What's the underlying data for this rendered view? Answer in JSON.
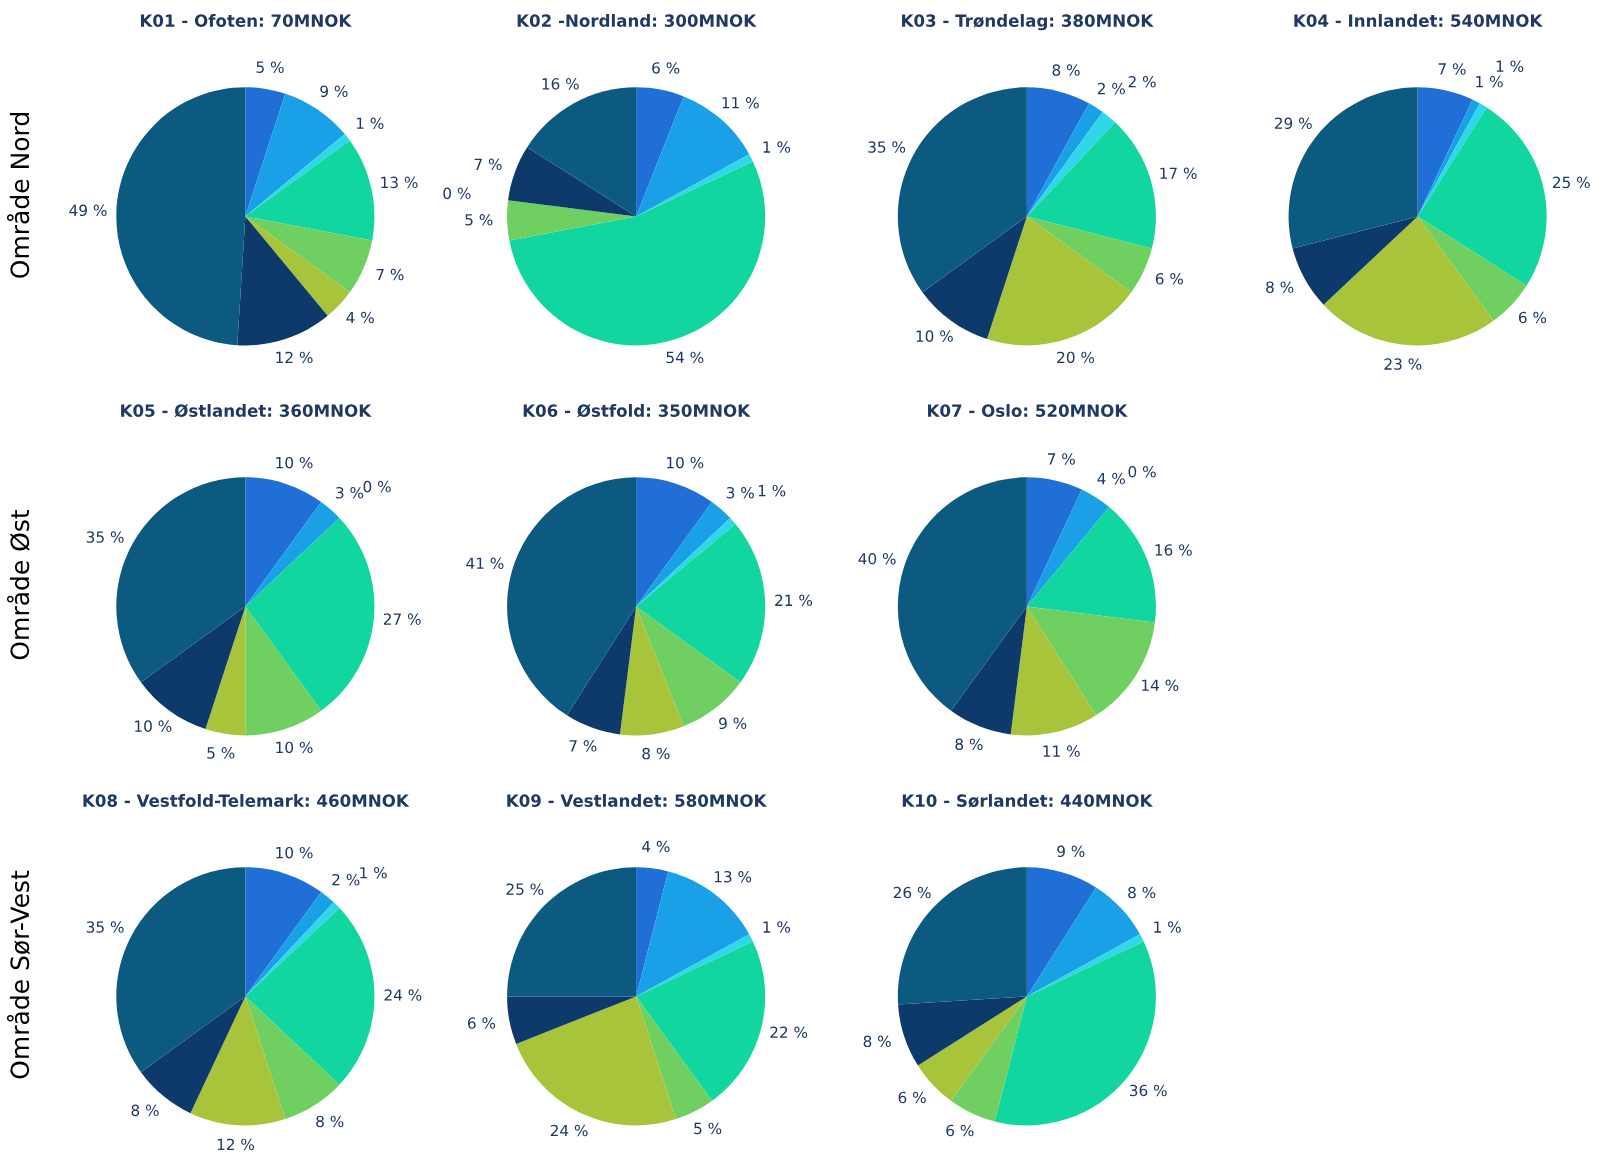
{
  "chart_data": [
    {
      "type": "pie",
      "title": "K01 - Ofoten: 70MNOK",
      "annotations": [
        "Område Nord"
      ],
      "categories": [
        null,
        null,
        null,
        null,
        null,
        null,
        null,
        null
      ],
      "values": [
        5,
        9,
        1,
        13,
        7,
        4,
        12,
        49
      ],
      "value_labels": [
        "5 %",
        "9 %",
        "1 %",
        "13 %",
        "7 %",
        "4 %",
        "12 %",
        "49 %"
      ],
      "colors": [
        "#1f6fd6",
        "#1aa0e6",
        "#2fd8e8",
        "#12d6a0",
        "#6fcf60",
        "#a8c43a",
        "#0d3a6b",
        "#0d5a80"
      ]
    },
    {
      "type": "pie",
      "title": "K02 -Nordland: 300MNOK",
      "categories": [
        null,
        null,
        null,
        null,
        null,
        null,
        null,
        null
      ],
      "values": [
        6,
        11,
        1,
        54,
        5,
        0,
        7,
        16
      ],
      "value_labels": [
        "6 %",
        "11 %",
        "1 %",
        "54 %",
        "5 %",
        "0 %",
        "7 %",
        "16 %"
      ],
      "colors": [
        "#1f6fd6",
        "#1aa0e6",
        "#2fd8e8",
        "#12d6a0",
        "#6fcf60",
        "#a8c43a",
        "#0d3a6b",
        "#0d5a80"
      ]
    },
    {
      "type": "pie",
      "title": "K03 - Trøndelag: 380MNOK",
      "categories": [
        null,
        null,
        null,
        null,
        null,
        null,
        null,
        null
      ],
      "values": [
        8,
        2,
        2,
        17,
        6,
        20,
        10,
        35
      ],
      "value_labels": [
        "8 %",
        "2 %",
        "2 %",
        "17 %",
        "6 %",
        "20 %",
        "10 %",
        "35 %"
      ],
      "colors": [
        "#1f6fd6",
        "#1aa0e6",
        "#2fd8e8",
        "#12d6a0",
        "#6fcf60",
        "#a8c43a",
        "#0d3a6b",
        "#0d5a80"
      ]
    },
    {
      "type": "pie",
      "title": "K04 - Innlandet: 540MNOK",
      "categories": [
        null,
        null,
        null,
        null,
        null,
        null,
        null,
        null
      ],
      "values": [
        7,
        1,
        1,
        25,
        6,
        23,
        8,
        29
      ],
      "value_labels": [
        "7 %",
        "1 %",
        "1 %",
        "25 %",
        "6 %",
        "23 %",
        "8 %",
        "29 %"
      ],
      "colors": [
        "#1f6fd6",
        "#1aa0e6",
        "#2fd8e8",
        "#12d6a0",
        "#6fcf60",
        "#a8c43a",
        "#0d3a6b",
        "#0d5a80"
      ]
    },
    {
      "type": "pie",
      "title": "K05 - Østlandet: 360MNOK",
      "annotations": [
        "Område Øst"
      ],
      "categories": [
        null,
        null,
        null,
        null,
        null,
        null,
        null,
        null
      ],
      "values": [
        10,
        3,
        0,
        27,
        10,
        5,
        10,
        35
      ],
      "value_labels": [
        "10 %",
        "3 %",
        "0 %",
        "27 %",
        "10 %",
        "5 %",
        "10 %",
        "35 %"
      ],
      "colors": [
        "#1f6fd6",
        "#1aa0e6",
        "#2fd8e8",
        "#12d6a0",
        "#6fcf60",
        "#a8c43a",
        "#0d3a6b",
        "#0d5a80"
      ]
    },
    {
      "type": "pie",
      "title": "K06 - Østfold: 350MNOK",
      "categories": [
        null,
        null,
        null,
        null,
        null,
        null,
        null,
        null
      ],
      "values": [
        10,
        3,
        1,
        21,
        9,
        8,
        7,
        41
      ],
      "value_labels": [
        "10 %",
        "3 %",
        "1 %",
        "21 %",
        "9 %",
        "8 %",
        "7 %",
        "41 %"
      ],
      "colors": [
        "#1f6fd6",
        "#1aa0e6",
        "#2fd8e8",
        "#12d6a0",
        "#6fcf60",
        "#a8c43a",
        "#0d3a6b",
        "#0d5a80"
      ]
    },
    {
      "type": "pie",
      "title": "K07 - Oslo: 520MNOK",
      "categories": [
        null,
        null,
        null,
        null,
        null,
        null,
        null,
        null
      ],
      "values": [
        7,
        4,
        0,
        16,
        14,
        11,
        8,
        40
      ],
      "value_labels": [
        "7 %",
        "4 %",
        "0 %",
        "16 %",
        "14 %",
        "11 %",
        "8 %",
        "40 %"
      ],
      "colors": [
        "#1f6fd6",
        "#1aa0e6",
        "#2fd8e8",
        "#12d6a0",
        "#6fcf60",
        "#a8c43a",
        "#0d3a6b",
        "#0d5a80"
      ]
    },
    {
      "type": "pie",
      "title": "K08 - Vestfold-Telemark: 460MNOK",
      "annotations": [
        "Område Sør-Vest"
      ],
      "categories": [
        null,
        null,
        null,
        null,
        null,
        null,
        null,
        null
      ],
      "values": [
        10,
        2,
        1,
        24,
        8,
        12,
        8,
        35
      ],
      "value_labels": [
        "10 %",
        "2 %",
        "1 %",
        "24 %",
        "8 %",
        "12 %",
        "8 %",
        "35 %"
      ],
      "colors": [
        "#1f6fd6",
        "#1aa0e6",
        "#2fd8e8",
        "#12d6a0",
        "#6fcf60",
        "#a8c43a",
        "#0d3a6b",
        "#0d5a80"
      ]
    },
    {
      "type": "pie",
      "title": "K09 - Vestlandet: 580MNOK",
      "categories": [
        null,
        null,
        null,
        null,
        null,
        null,
        null,
        null
      ],
      "values": [
        4,
        13,
        1,
        22,
        5,
        24,
        6,
        25
      ],
      "value_labels": [
        "4 %",
        "13 %",
        "1 %",
        "22 %",
        "5 %",
        "24 %",
        "6 %",
        "25 %"
      ],
      "colors": [
        "#1f6fd6",
        "#1aa0e6",
        "#2fd8e8",
        "#12d6a0",
        "#6fcf60",
        "#a8c43a",
        "#0d3a6b",
        "#0d5a80"
      ]
    },
    {
      "type": "pie",
      "title": "K10 - Sørlandet: 440MNOK",
      "categories": [
        null,
        null,
        null,
        null,
        null,
        null,
        null,
        null
      ],
      "values": [
        9,
        8,
        1,
        36,
        6,
        6,
        8,
        26
      ],
      "value_labels": [
        "9 %",
        "8 %",
        "1 %",
        "36 %",
        "6 %",
        "6 %",
        "8 %",
        "26 %"
      ],
      "colors": [
        "#1f6fd6",
        "#1aa0e6",
        "#2fd8e8",
        "#12d6a0",
        "#6fcf60",
        "#a8c43a",
        "#0d3a6b",
        "#0d5a80"
      ]
    }
  ]
}
